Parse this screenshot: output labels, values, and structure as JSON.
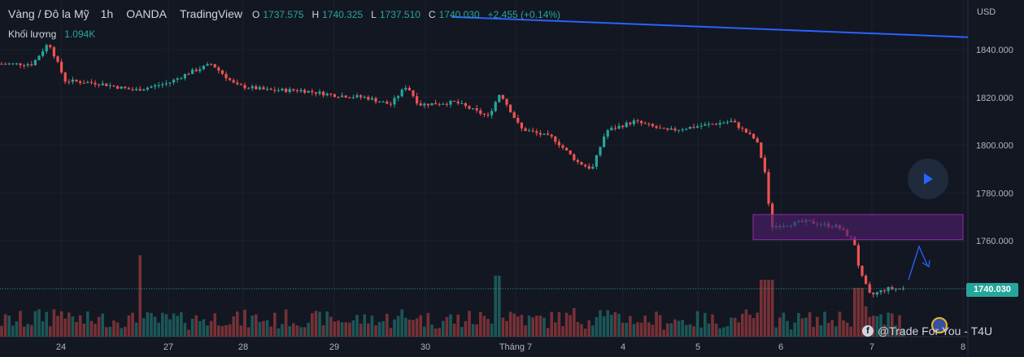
{
  "legend": {
    "symbol": "Vàng / Đô la Mỹ",
    "timeframe": "1h",
    "broker": "OANDA",
    "source": "TradingView",
    "open_label": "O",
    "open": "1737.575",
    "high_label": "H",
    "high": "1740.325",
    "low_label": "L",
    "low": "1737.510",
    "close_label": "C",
    "close": "1740.030",
    "change": "+2.455 (+0.14%)"
  },
  "volume_legend": {
    "label": "Khối lượng",
    "value": "1.094K"
  },
  "currency": "USD",
  "last_price": "1740.030",
  "watermark": "@Trade For You - T4U",
  "colors": {
    "background": "#131722",
    "up": "#26a69a",
    "down": "#ef5350",
    "trendline": "#2962ff",
    "zone_fill": "#4a1e6b",
    "zone_border": "#9c27b0",
    "arrow": "#2962ff"
  },
  "chart_data": {
    "type": "candlestick",
    "symbol": "XAUUSD",
    "interval": "1h",
    "y_axis": {
      "ticks": [
        1840,
        1820,
        1800,
        1780,
        1760,
        1740
      ],
      "tick_labels": [
        "1840.000",
        "1820.000",
        "1800.000",
        "1780.000",
        "1760.000",
        "1740.000"
      ],
      "range": [
        1732,
        1850
      ]
    },
    "x_axis": {
      "tick_labels": [
        "24",
        "27",
        "28",
        "29",
        "30",
        "Tháng 7",
        "4",
        "5",
        "6",
        "7",
        "8"
      ]
    },
    "trend_line": {
      "from_price": 1853.7,
      "to_price": 1845.2
    },
    "resistance_zone": {
      "top": 1771,
      "bottom": 1760.5
    },
    "series_anchors": [
      {
        "x_label": "24",
        "close": 1833
      },
      {
        "x_label": "27",
        "close": 1826
      },
      {
        "x_label": "28",
        "close": 1823
      },
      {
        "x_label": "29",
        "close": 1822
      },
      {
        "x_label": "30",
        "close": 1819
      },
      {
        "x_label": "Tháng 7",
        "close": 1806
      },
      {
        "x_label": "4",
        "close": 1808
      },
      {
        "x_label": "5",
        "close": 1809
      },
      {
        "x_label": "6",
        "close": 1765
      },
      {
        "x_label": "7",
        "close": 1740.03
      }
    ]
  }
}
